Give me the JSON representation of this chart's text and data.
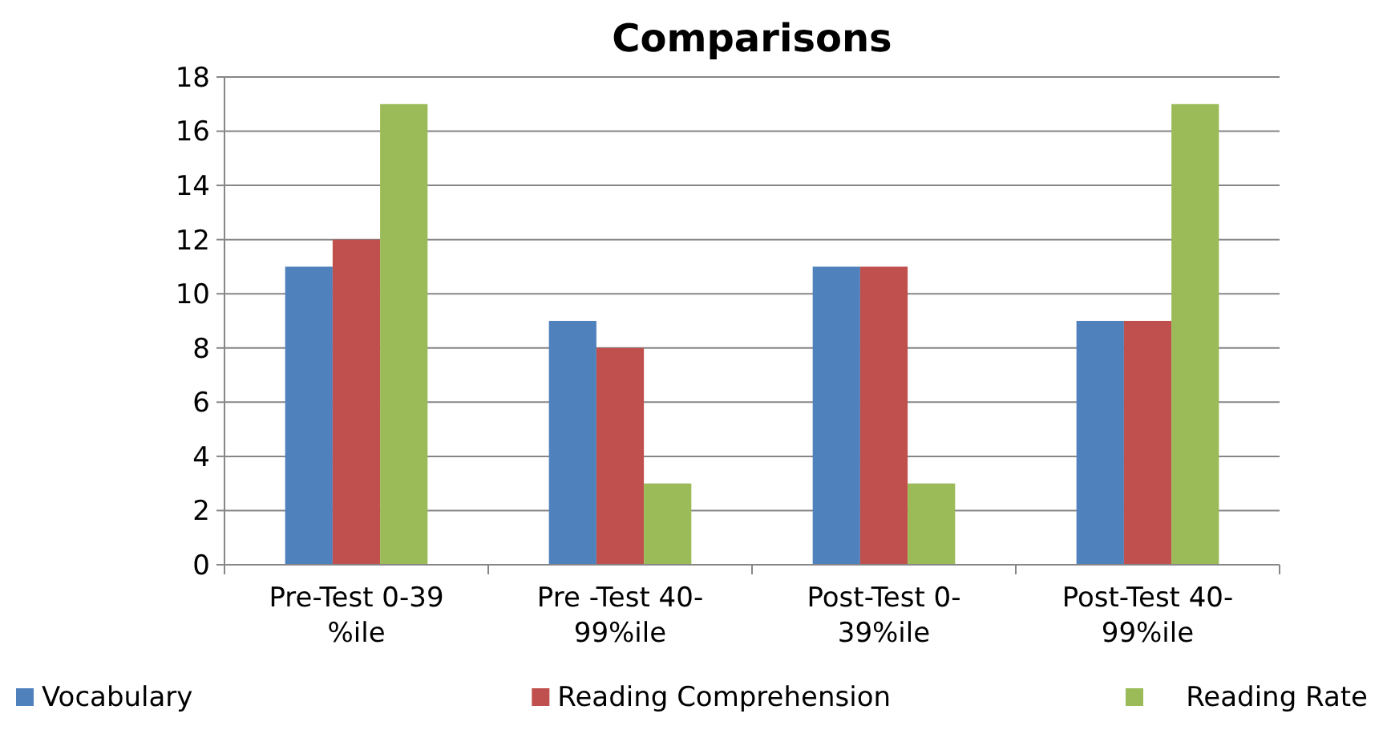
{
  "chart_data": {
    "type": "bar",
    "title": "Comparisons",
    "categories": [
      "Pre-Test 0-39 %ile",
      "Pre -Test 40-99%ile",
      "Post-Test 0-39%ile",
      "Post-Test 40-99%ile"
    ],
    "series": [
      {
        "name": "Vocabulary",
        "color": "#4f81bd",
        "values": [
          11,
          9,
          11,
          9
        ]
      },
      {
        "name": "Reading Comprehension",
        "color": "#c0504d",
        "values": [
          12,
          8,
          11,
          9
        ]
      },
      {
        "name": "Reading Rate",
        "color": "#9bbb59",
        "values": [
          17,
          3,
          3,
          17
        ]
      }
    ],
    "ylim": [
      0,
      18
    ],
    "yticks": [
      0,
      2,
      4,
      6,
      8,
      10,
      12,
      14,
      16,
      18
    ],
    "grid": "y",
    "legend": "bottom"
  }
}
